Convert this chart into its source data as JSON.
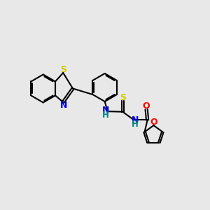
{
  "bg_color": "#e8e8e8",
  "bond_color": "#000000",
  "bond_width": 1.5,
  "S_color": "#cccc00",
  "N_color": "#0000ee",
  "O_color": "#ff0000",
  "NH_color": "#008080",
  "font_size": 8.5,
  "figsize": [
    3.0,
    3.0
  ],
  "dpi": 100,
  "xlim": [
    0,
    10
  ],
  "ylim": [
    0,
    10
  ]
}
